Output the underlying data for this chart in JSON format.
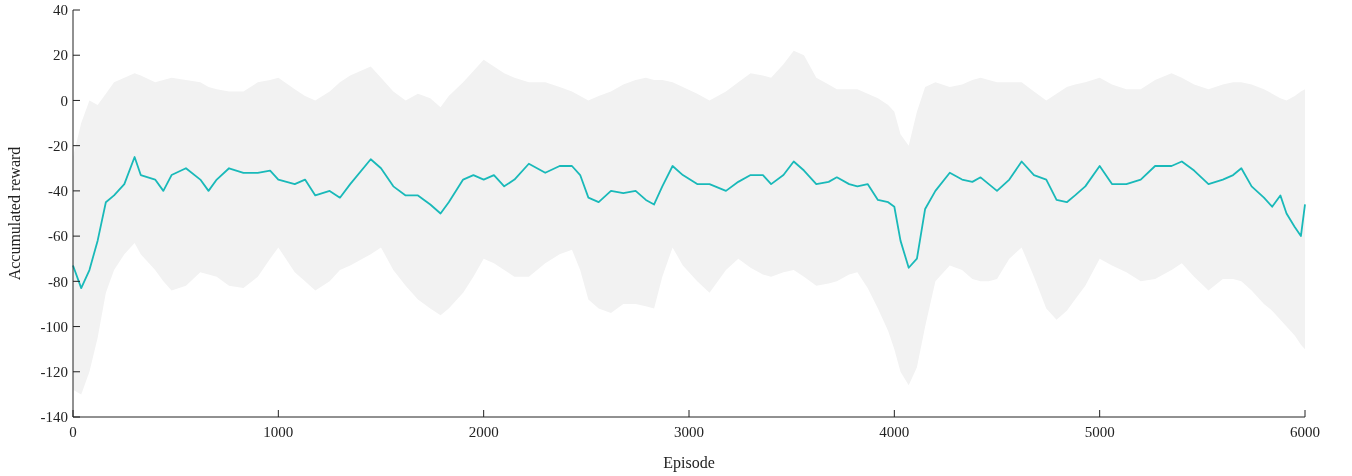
{
  "chart_data": {
    "type": "line",
    "xlabel": "Episode",
    "ylabel": "Accumulated reward",
    "xlim": [
      0,
      6000
    ],
    "xticks": [
      0,
      1000,
      2000,
      3000,
      4000,
      5000,
      6000
    ],
    "ylim": [
      -140,
      40
    ],
    "yticks": [
      -140,
      -120,
      -100,
      -80,
      -60,
      -40,
      -20,
      0,
      20,
      40
    ],
    "series": [
      {
        "color": "#19b9b9",
        "x": [
          0,
          40,
          80,
          120,
          160,
          200,
          250,
          300,
          330,
          400,
          440,
          480,
          550,
          620,
          660,
          700,
          760,
          830,
          900,
          960,
          1000,
          1080,
          1130,
          1180,
          1250,
          1300,
          1350,
          1450,
          1500,
          1560,
          1620,
          1680,
          1740,
          1790,
          1830,
          1900,
          1950,
          2000,
          2050,
          2100,
          2150,
          2220,
          2300,
          2370,
          2430,
          2470,
          2510,
          2560,
          2620,
          2680,
          2740,
          2790,
          2830,
          2870,
          2920,
          2970,
          3040,
          3100,
          3180,
          3240,
          3300,
          3360,
          3400,
          3460,
          3510,
          3560,
          3620,
          3680,
          3720,
          3780,
          3820,
          3870,
          3920,
          3970,
          4000,
          4030,
          4070,
          4110,
          4150,
          4200,
          4270,
          4330,
          4380,
          4420,
          4460,
          4500,
          4560,
          4620,
          4680,
          4740,
          4790,
          4840,
          4880,
          4930,
          5000,
          5060,
          5130,
          5200,
          5270,
          5350,
          5400,
          5460,
          5530,
          5600,
          5650,
          5690,
          5740,
          5800,
          5840,
          5880,
          5910,
          5950,
          5980,
          6000
        ],
        "values": [
          -73,
          -83,
          -75,
          -62,
          -45,
          -42,
          -37,
          -25,
          -33,
          -35,
          -40,
          -33,
          -30,
          -35,
          -40,
          -35,
          -30,
          -32,
          -32,
          -31,
          -35,
          -37,
          -35,
          -42,
          -40,
          -43,
          -37,
          -26,
          -30,
          -38,
          -42,
          -42,
          -46,
          -50,
          -45,
          -35,
          -33,
          -35,
          -33,
          -38,
          -35,
          -28,
          -32,
          -29,
          -29,
          -33,
          -43,
          -45,
          -40,
          -41,
          -40,
          -44,
          -46,
          -38,
          -29,
          -33,
          -37,
          -37,
          -40,
          -36,
          -33,
          -33,
          -37,
          -33,
          -27,
          -31,
          -37,
          -36,
          -34,
          -37,
          -38,
          -37,
          -44,
          -45,
          -47,
          -62,
          -74,
          -70,
          -48,
          -40,
          -32,
          -35,
          -36,
          -34,
          -37,
          -40,
          -35,
          -27,
          -33,
          -35,
          -44,
          -45,
          -42,
          -38,
          -29,
          -37,
          -37,
          -35,
          -29,
          -29,
          -27,
          -31,
          -37,
          -35,
          -33,
          -30,
          -38,
          -43,
          -47,
          -42,
          -50,
          -56,
          -60,
          -46
        ],
        "upper": [
          -25,
          -10,
          0,
          -2,
          3,
          8,
          10,
          12,
          11,
          8,
          9,
          10,
          9,
          8,
          6,
          5,
          4,
          4,
          8,
          9,
          10,
          5,
          2,
          0,
          4,
          8,
          11,
          15,
          10,
          4,
          0,
          3,
          1,
          -3,
          2,
          8,
          13,
          18,
          15,
          12,
          10,
          8,
          8,
          6,
          4,
          2,
          0,
          2,
          4,
          7,
          9,
          10,
          9,
          9,
          8,
          6,
          3,
          0,
          4,
          8,
          12,
          11,
          10,
          16,
          22,
          20,
          10,
          7,
          5,
          5,
          5,
          3,
          1,
          -2,
          -5,
          -15,
          -20,
          -5,
          6,
          8,
          6,
          7,
          9,
          10,
          9,
          8,
          8,
          8,
          4,
          0,
          3,
          6,
          7,
          8,
          10,
          7,
          5,
          5,
          9,
          12,
          10,
          7,
          5,
          7,
          8,
          8,
          7,
          5,
          3,
          1,
          0,
          2,
          4,
          5
        ],
        "lower": [
          -128,
          -130,
          -120,
          -105,
          -85,
          -75,
          -68,
          -63,
          -68,
          -75,
          -80,
          -84,
          -82,
          -76,
          -77,
          -78,
          -82,
          -83,
          -78,
          -70,
          -65,
          -76,
          -80,
          -84,
          -80,
          -75,
          -73,
          -68,
          -65,
          -75,
          -82,
          -88,
          -92,
          -95,
          -92,
          -85,
          -78,
          -70,
          -72,
          -75,
          -78,
          -78,
          -72,
          -68,
          -66,
          -75,
          -88,
          -92,
          -94,
          -90,
          -90,
          -91,
          -92,
          -78,
          -65,
          -73,
          -80,
          -85,
          -75,
          -70,
          -74,
          -77,
          -78,
          -76,
          -75,
          -78,
          -82,
          -81,
          -80,
          -77,
          -76,
          -83,
          -92,
          -102,
          -110,
          -120,
          -126,
          -118,
          -100,
          -80,
          -73,
          -75,
          -79,
          -80,
          -80,
          -79,
          -70,
          -65,
          -78,
          -92,
          -97,
          -93,
          -88,
          -82,
          -70,
          -73,
          -76,
          -80,
          -79,
          -75,
          -72,
          -78,
          -84,
          -79,
          -79,
          -80,
          -84,
          -90,
          -93,
          -97,
          -100,
          -104,
          -108,
          -110
        ]
      }
    ]
  }
}
